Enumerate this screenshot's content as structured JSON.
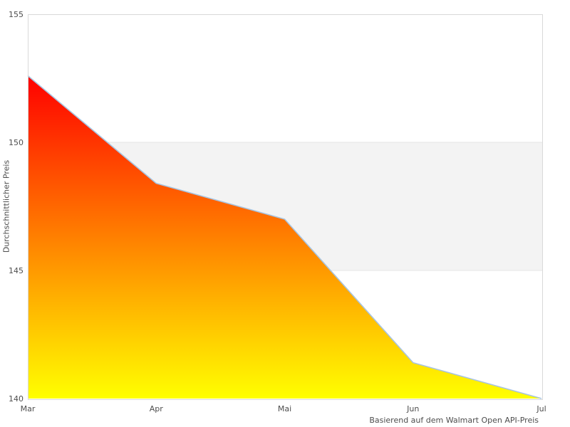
{
  "chart_data": {
    "type": "area",
    "title": "",
    "xlabel": "",
    "ylabel": "Durchschnittlicher Preis",
    "caption": "Basierend auf dem Walmart Open API-Preis",
    "x": [
      "Mar",
      "Apr",
      "Mai",
      "Jun",
      "Jul"
    ],
    "values": [
      152.6,
      148.4,
      147.0,
      141.4,
      140.0
    ],
    "ylim": [
      140,
      155
    ],
    "yticks": [
      140,
      145,
      150,
      155
    ],
    "grid": false,
    "legend": null,
    "band": {
      "from": 145,
      "to": 150,
      "fill_color": "#f3f3f3",
      "border_color": "#e5e5e5"
    },
    "colors": {
      "area_gradient_top": "#ff0000",
      "area_gradient_bottom": "#ffff00",
      "line_color": "#a8c4e0",
      "plot_border_color": "#d9d9d9",
      "text_color": "#4d4d4d",
      "background": "#ffffff"
    }
  }
}
